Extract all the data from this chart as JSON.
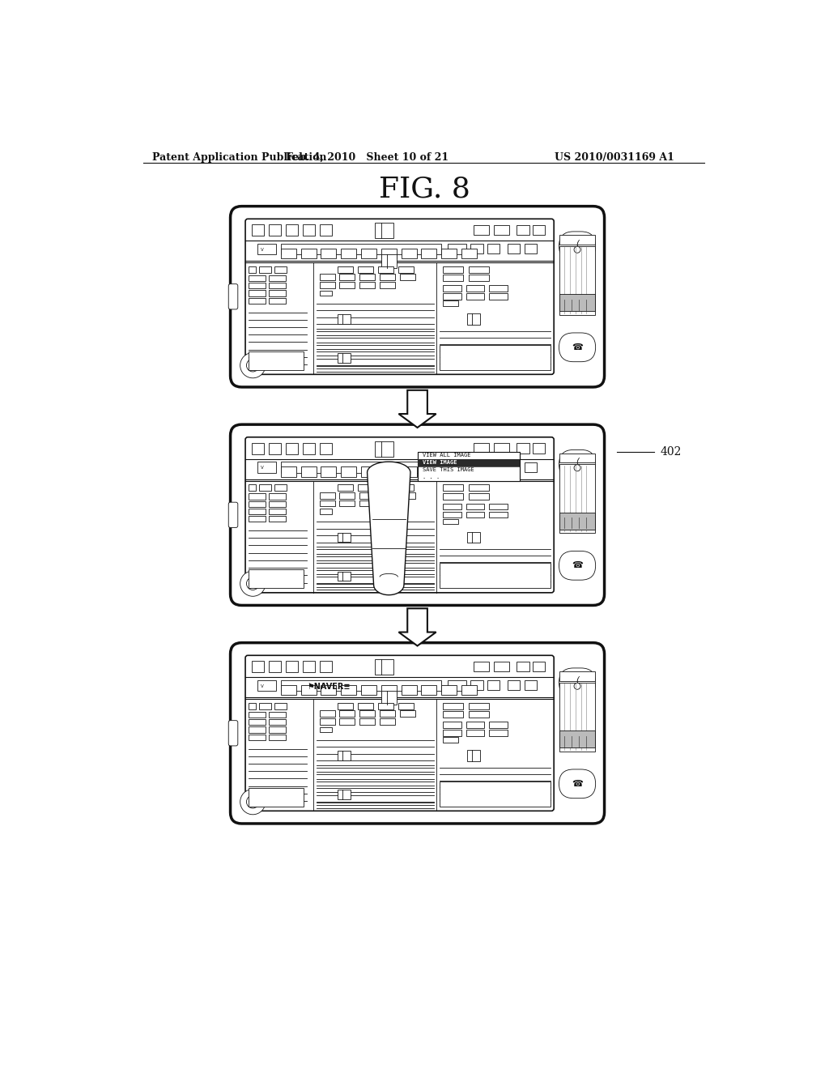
{
  "header_left": "Patent Application Publication",
  "header_mid": "Feb. 4, 2010   Sheet 10 of 21",
  "header_right": "US 2010/0031169 A1",
  "fig_label": "FIG. 8",
  "label_402": "402",
  "bg_color": "#ffffff",
  "line_color": "#111111"
}
